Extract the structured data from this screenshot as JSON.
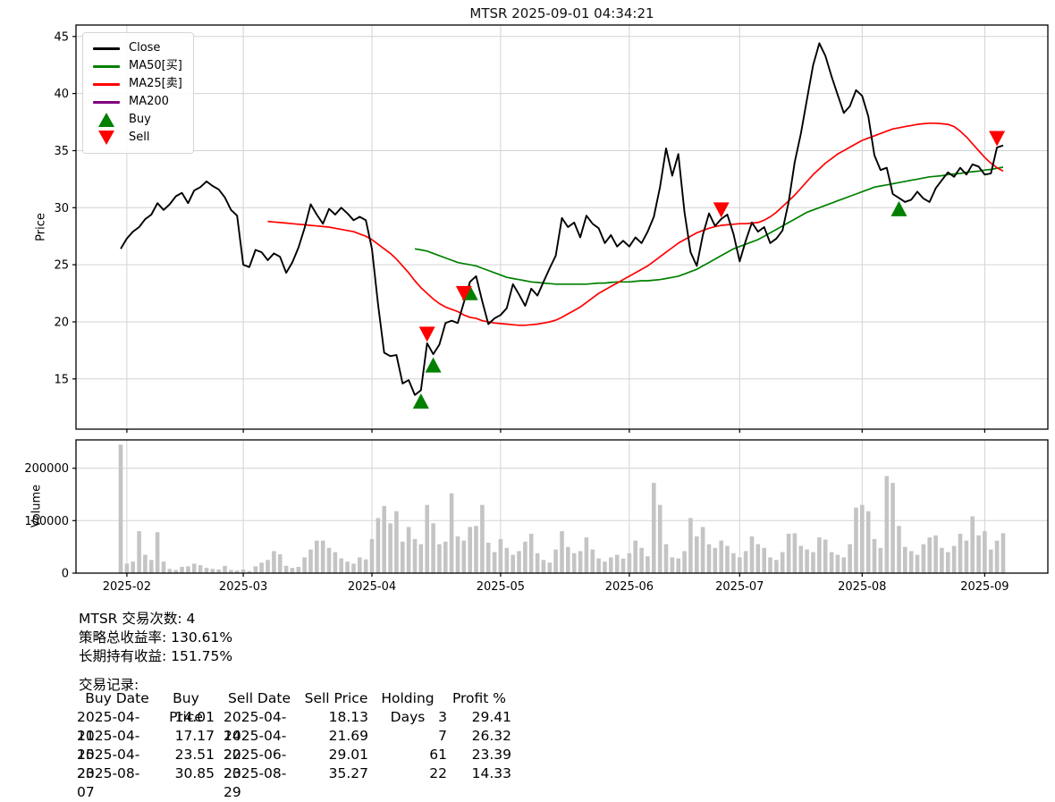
{
  "title": "MTSR 2025-09-01 04:34:21",
  "colors": {
    "close": "#000000",
    "ma50": "#008000",
    "ma25": "#ff0000",
    "ma200": "#800080",
    "buy": "#008000",
    "sell": "#ff0000",
    "volume_bar": "#c4c4c4",
    "grid": "#d3d3d3",
    "axis_border": "#000000"
  },
  "price_panel": {
    "ylabel": "Price",
    "yticks": [
      15,
      20,
      25,
      30,
      35,
      40,
      45
    ],
    "ylim": [
      10.6,
      46.0
    ]
  },
  "volume_panel": {
    "ylabel": "Volume",
    "yticks": [
      0,
      100000,
      200000
    ],
    "ylim": [
      0,
      254000
    ]
  },
  "legend": [
    {
      "label": "Close",
      "color": "#000000",
      "swatch": "line"
    },
    {
      "label": "MA50[买]",
      "color": "#008000",
      "swatch": "line"
    },
    {
      "label": "MA25[卖]",
      "color": "#ff0000",
      "swatch": "line"
    },
    {
      "label": "MA200",
      "color": "#800080",
      "swatch": "line"
    },
    {
      "label": "Buy",
      "color": "#008000",
      "swatch": "triangle-up"
    },
    {
      "label": "Sell",
      "color": "#ff0000",
      "swatch": "triangle-down"
    }
  ],
  "chart_data": {
    "type": "line+bar",
    "title": "MTSR 2025-09-01 04:34:21",
    "ylabel": "Price",
    "ylabel2": "Volume",
    "n_points": 145,
    "x_ticks": {
      "indices": [
        1,
        20,
        41,
        62,
        83,
        101,
        121,
        141
      ],
      "labels": [
        "2025-02",
        "2025-03",
        "2025-04",
        "2025-05",
        "2025-06",
        "2025-07",
        "2025-08",
        "2025-09"
      ]
    },
    "series": [
      {
        "name": "Close",
        "color": "#000000",
        "start_index": 0,
        "values": [
          26.4,
          27.3,
          27.9,
          28.3,
          29.0,
          29.4,
          30.4,
          29.8,
          30.3,
          31.0,
          31.3,
          30.4,
          31.5,
          31.8,
          32.3,
          31.9,
          31.6,
          30.9,
          29.8,
          29.3,
          25.0,
          24.8,
          26.3,
          26.1,
          25.4,
          26.0,
          25.7,
          24.3,
          25.2,
          26.5,
          28.2,
          30.3,
          29.4,
          28.6,
          29.9,
          29.4,
          30.0,
          29.5,
          28.9,
          29.2,
          28.9,
          26.4,
          21.5,
          17.3,
          17.0,
          17.1,
          14.6,
          14.9,
          13.6,
          14.01,
          18.13,
          17.17,
          18.0,
          19.9,
          20.1,
          19.9,
          21.69,
          23.51,
          24.0,
          21.8,
          19.8,
          20.3,
          20.6,
          21.2,
          23.3,
          22.4,
          21.4,
          22.9,
          22.3,
          23.5,
          24.7,
          25.8,
          29.1,
          28.3,
          28.7,
          27.4,
          29.3,
          28.6,
          28.2,
          26.9,
          27.6,
          26.6,
          27.1,
          26.6,
          27.4,
          26.9,
          27.9,
          29.2,
          31.8,
          35.2,
          32.8,
          34.7,
          29.6,
          26.1,
          24.9,
          27.6,
          29.5,
          28.4,
          29.01,
          29.4,
          27.7,
          25.3,
          27.1,
          28.7,
          27.9,
          28.3,
          26.9,
          27.3,
          28.0,
          30.5,
          34.0,
          36.5,
          39.5,
          42.5,
          44.4,
          43.3,
          41.5,
          39.9,
          38.3,
          38.9,
          40.3,
          39.8,
          38.0,
          34.6,
          33.3,
          33.5,
          31.2,
          30.85,
          30.5,
          30.7,
          31.4,
          30.8,
          30.5,
          31.7,
          32.4,
          33.1,
          32.7,
          33.5,
          32.9,
          33.8,
          33.6,
          32.9,
          33.0,
          35.27,
          35.45
        ]
      },
      {
        "name": "MA50[买]",
        "color": "#008000",
        "start_index": 48,
        "values": [
          26.4,
          26.3,
          26.2,
          26.0,
          25.8,
          25.6,
          25.4,
          25.2,
          25.1,
          25.0,
          24.9,
          24.7,
          24.5,
          24.3,
          24.1,
          23.9,
          23.8,
          23.7,
          23.6,
          23.5,
          23.45,
          23.4,
          23.35,
          23.3,
          23.3,
          23.3,
          23.3,
          23.3,
          23.3,
          23.35,
          23.4,
          23.4,
          23.45,
          23.5,
          23.5,
          23.5,
          23.55,
          23.6,
          23.6,
          23.65,
          23.7,
          23.8,
          23.9,
          24.0,
          24.2,
          24.4,
          24.6,
          24.9,
          25.2,
          25.5,
          25.8,
          26.1,
          26.4,
          26.6,
          26.8,
          27.0,
          27.2,
          27.5,
          27.8,
          28.1,
          28.4,
          28.7,
          29.0,
          29.3,
          29.6,
          29.8,
          30.0,
          30.2,
          30.4,
          30.6,
          30.8,
          31.0,
          31.2,
          31.4,
          31.6,
          31.8,
          31.9,
          32.0,
          32.1,
          32.2,
          32.3,
          32.4,
          32.5,
          32.6,
          32.7,
          32.75,
          32.8,
          32.9,
          32.95,
          33.0,
          33.1,
          33.15,
          33.2,
          33.3,
          33.35,
          33.45,
          33.55
        ]
      },
      {
        "name": "MA25[卖]",
        "color": "#ff0000",
        "start_index": 24,
        "values": [
          28.8,
          28.75,
          28.7,
          28.65,
          28.6,
          28.55,
          28.5,
          28.45,
          28.4,
          28.35,
          28.3,
          28.2,
          28.1,
          28.0,
          27.9,
          27.7,
          27.5,
          27.2,
          26.8,
          26.4,
          26.0,
          25.5,
          24.9,
          24.3,
          23.6,
          23.0,
          22.5,
          22.0,
          21.6,
          21.3,
          21.1,
          20.9,
          20.6,
          20.4,
          20.3,
          20.1,
          20.0,
          19.9,
          19.85,
          19.8,
          19.75,
          19.7,
          19.7,
          19.75,
          19.8,
          19.9,
          20.0,
          20.15,
          20.4,
          20.7,
          21.0,
          21.3,
          21.7,
          22.1,
          22.5,
          22.8,
          23.1,
          23.4,
          23.7,
          24.0,
          24.3,
          24.6,
          24.9,
          25.3,
          25.7,
          26.1,
          26.5,
          26.9,
          27.2,
          27.5,
          27.8,
          28.0,
          28.2,
          28.35,
          28.45,
          28.5,
          28.55,
          28.6,
          28.6,
          28.65,
          28.7,
          28.9,
          29.2,
          29.6,
          30.1,
          30.6,
          31.1,
          31.7,
          32.3,
          32.9,
          33.4,
          33.9,
          34.3,
          34.7,
          35.0,
          35.3,
          35.6,
          35.9,
          36.1,
          36.3,
          36.5,
          36.7,
          36.9,
          37.0,
          37.1,
          37.2,
          37.3,
          37.35,
          37.4,
          37.4,
          37.35,
          37.3,
          37.1,
          36.7,
          36.2,
          35.6,
          35.0,
          34.4,
          33.9,
          33.5,
          33.2
        ]
      },
      {
        "name": "MA200",
        "color": "#800080",
        "start_index": 0,
        "values": []
      }
    ],
    "volume": {
      "color": "#c4c4c4",
      "values": [
        245000,
        18000,
        22000,
        80000,
        35000,
        25000,
        78000,
        22000,
        8000,
        6000,
        12000,
        13000,
        18000,
        15000,
        10000,
        8000,
        7000,
        14000,
        6000,
        5000,
        7000,
        4000,
        13000,
        20000,
        25000,
        42000,
        36000,
        14000,
        10000,
        12000,
        30000,
        45000,
        62000,
        62000,
        48000,
        40000,
        28000,
        22000,
        18000,
        30000,
        26000,
        65000,
        105000,
        128000,
        95000,
        118000,
        60000,
        88000,
        65000,
        55000,
        130000,
        95000,
        55000,
        60000,
        152000,
        70000,
        62000,
        88000,
        90000,
        130000,
        58000,
        40000,
        65000,
        48000,
        35000,
        42000,
        60000,
        75000,
        38000,
        25000,
        20000,
        45000,
        80000,
        50000,
        38000,
        42000,
        68000,
        45000,
        28000,
        22000,
        30000,
        35000,
        28000,
        38000,
        62000,
        48000,
        32000,
        172000,
        130000,
        55000,
        30000,
        28000,
        42000,
        105000,
        70000,
        88000,
        55000,
        48000,
        62000,
        52000,
        38000,
        30000,
        42000,
        70000,
        55000,
        48000,
        30000,
        25000,
        40000,
        75000,
        76000,
        52000,
        45000,
        40000,
        68000,
        64000,
        40000,
        35000,
        30000,
        55000,
        125000,
        130000,
        118000,
        65000,
        48000,
        185000,
        172000,
        90000,
        50000,
        42000,
        35000,
        55000,
        68000,
        72000,
        48000,
        40000,
        52000,
        75000,
        62000,
        108000,
        72000,
        80000,
        45000,
        62000,
        76000
      ]
    },
    "markers": {
      "buys": [
        {
          "index": 49,
          "date": "2025-04-11",
          "price": 14.01
        },
        {
          "index": 51,
          "date": "2025-04-15",
          "price": 17.17
        },
        {
          "index": 57,
          "date": "2025-04-23",
          "price": 23.51
        },
        {
          "index": 127,
          "date": "2025-08-07",
          "price": 30.85
        }
      ],
      "sells": [
        {
          "index": 50,
          "date": "2025-04-14",
          "price": 18.13
        },
        {
          "index": 56,
          "date": "2025-04-22",
          "price": 21.69
        },
        {
          "index": 98,
          "date": "2025-06-23",
          "price": 29.01
        },
        {
          "index": 143,
          "date": "2025-08-29",
          "price": 35.27
        }
      ]
    }
  },
  "stats": {
    "line1": "MTSR 交易次数: 4",
    "line2": "策略总收益率: 130.61%",
    "line3": "长期持有收益: 151.75%",
    "records_label": "交易记录:"
  },
  "trades_table": {
    "headers": [
      "Buy Date",
      "Buy Price",
      "Sell Date",
      "Sell Price",
      "Holding Days",
      "Profit %"
    ],
    "rows": [
      [
        "2025-04-11",
        "14.01",
        "2025-04-14",
        "18.13",
        "3",
        "29.41"
      ],
      [
        "2025-04-15",
        "17.17",
        "2025-04-22",
        "21.69",
        "7",
        "26.32"
      ],
      [
        "2025-04-23",
        "23.51",
        "2025-06-23",
        "29.01",
        "61",
        "23.39"
      ],
      [
        "2025-08-07",
        "30.85",
        "2025-08-29",
        "35.27",
        "22",
        "14.33"
      ]
    ]
  }
}
